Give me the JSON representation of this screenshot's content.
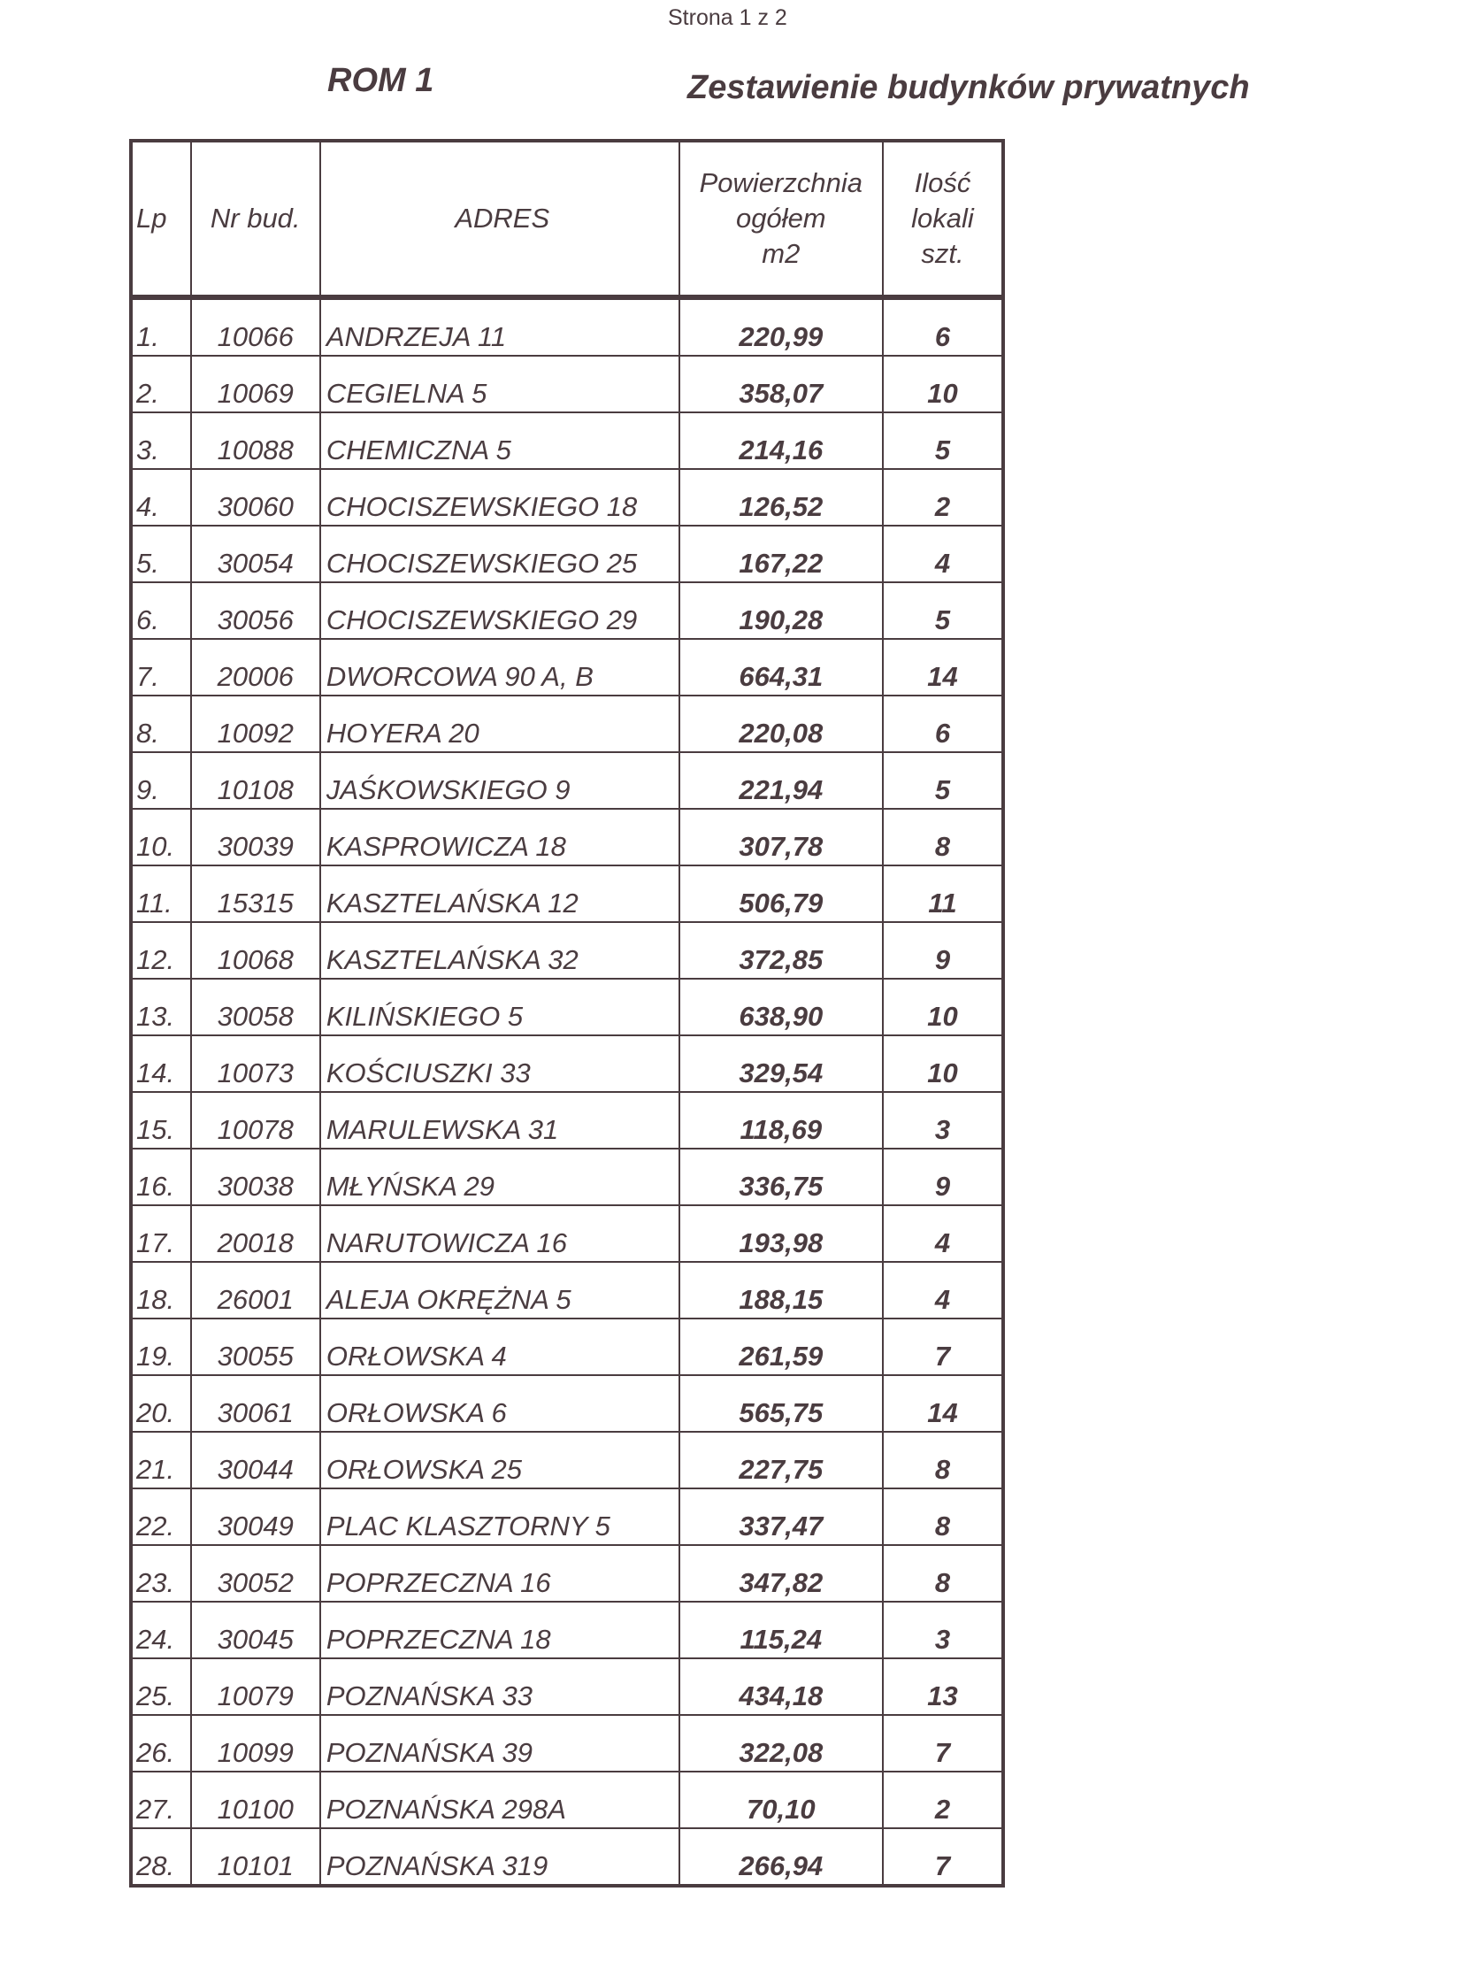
{
  "page_number": "Strona 1 z 2",
  "left_heading": "ROM 1",
  "title": "Zestawienie budynków prywatnych",
  "table": {
    "headers": {
      "lp": "Lp",
      "nr": "Nr bud.",
      "address": "ADRES",
      "area_1": "Powierzchnia",
      "area_2": "ogółem",
      "area_3": "m2",
      "count_1": "Ilość",
      "count_2": "lokali",
      "count_3": "szt."
    },
    "rows": [
      {
        "lp": "1.",
        "nr": "10066",
        "address": "ANDRZEJA 11",
        "area": "220,99",
        "count": "6"
      },
      {
        "lp": "2.",
        "nr": "10069",
        "address": "CEGIELNA 5",
        "area": "358,07",
        "count": "10"
      },
      {
        "lp": "3.",
        "nr": "10088",
        "address": "CHEMICZNA 5",
        "area": "214,16",
        "count": "5"
      },
      {
        "lp": "4.",
        "nr": "30060",
        "address": "CHOCISZEWSKIEGO 18",
        "area": "126,52",
        "count": "2"
      },
      {
        "lp": "5.",
        "nr": "30054",
        "address": "CHOCISZEWSKIEGO 25",
        "area": "167,22",
        "count": "4"
      },
      {
        "lp": "6.",
        "nr": "30056",
        "address": "CHOCISZEWSKIEGO 29",
        "area": "190,28",
        "count": "5"
      },
      {
        "lp": "7.",
        "nr": "20006",
        "address": "DWORCOWA 90 A, B",
        "area": "664,31",
        "count": "14"
      },
      {
        "lp": "8.",
        "nr": "10092",
        "address": "HOYERA 20",
        "area": "220,08",
        "count": "6"
      },
      {
        "lp": "9.",
        "nr": "10108",
        "address": "JAŚKOWSKIEGO 9",
        "area": "221,94",
        "count": "5"
      },
      {
        "lp": "10.",
        "nr": "30039",
        "address": "KASPROWICZA 18",
        "area": "307,78",
        "count": "8"
      },
      {
        "lp": "11.",
        "nr": "15315",
        "address": "KASZTELAŃSKA 12",
        "area": "506,79",
        "count": "11"
      },
      {
        "lp": "12.",
        "nr": "10068",
        "address": "KASZTELAŃSKA 32",
        "area": "372,85",
        "count": "9"
      },
      {
        "lp": "13.",
        "nr": "30058",
        "address": "KILIŃSKIEGO 5",
        "area": "638,90",
        "count": "10"
      },
      {
        "lp": "14.",
        "nr": "10073",
        "address": "KOŚCIUSZKI 33",
        "area": "329,54",
        "count": "10"
      },
      {
        "lp": "15.",
        "nr": "10078",
        "address": "MARULEWSKA 31",
        "area": "118,69",
        "count": "3"
      },
      {
        "lp": "16.",
        "nr": "30038",
        "address": "MŁYŃSKA 29",
        "area": "336,75",
        "count": "9"
      },
      {
        "lp": "17.",
        "nr": "20018",
        "address": "NARUTOWICZA 16",
        "area": "193,98",
        "count": "4"
      },
      {
        "lp": "18.",
        "nr": "26001",
        "address": "ALEJA OKRĘŻNA 5",
        "area": "188,15",
        "count": "4"
      },
      {
        "lp": "19.",
        "nr": "30055",
        "address": "ORŁOWSKA 4",
        "area": "261,59",
        "count": "7"
      },
      {
        "lp": "20.",
        "nr": "30061",
        "address": "ORŁOWSKA 6",
        "area": "565,75",
        "count": "14"
      },
      {
        "lp": "21.",
        "nr": "30044",
        "address": "ORŁOWSKA 25",
        "area": "227,75",
        "count": "8"
      },
      {
        "lp": "22.",
        "nr": "30049",
        "address": "PLAC KLASZTORNY 5",
        "area": "337,47",
        "count": "8"
      },
      {
        "lp": "23.",
        "nr": "30052",
        "address": "POPRZECZNA 16",
        "area": "347,82",
        "count": "8"
      },
      {
        "lp": "24.",
        "nr": "30045",
        "address": "POPRZECZNA 18",
        "area": "115,24",
        "count": "3"
      },
      {
        "lp": "25.",
        "nr": "10079",
        "address": "POZNAŃSKA 33",
        "area": "434,18",
        "count": "13"
      },
      {
        "lp": "26.",
        "nr": "10099",
        "address": "POZNAŃSKA 39",
        "area": "322,08",
        "count": "7"
      },
      {
        "lp": "27.",
        "nr": "10100",
        "address": "POZNAŃSKA 298A",
        "area": "70,10",
        "count": "2"
      },
      {
        "lp": "28.",
        "nr": "10101",
        "address": "POZNAŃSKA 319",
        "area": "266,94",
        "count": "7"
      }
    ]
  }
}
